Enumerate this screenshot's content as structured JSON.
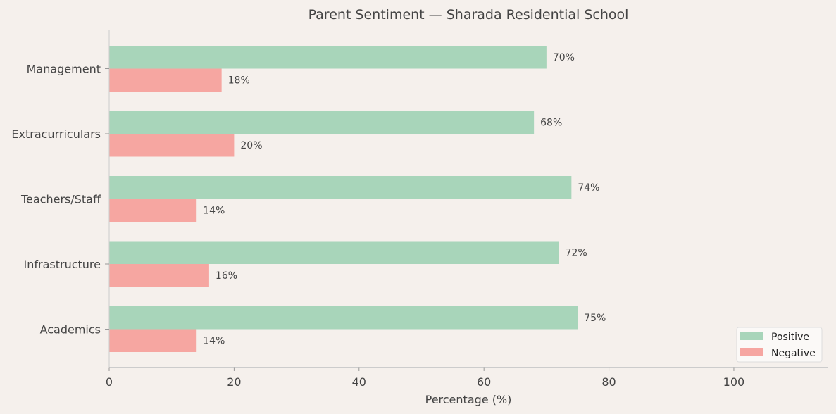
{
  "chart_data": {
    "type": "bar",
    "orientation": "horizontal",
    "title": "Parent Sentiment — Sharada Residential School",
    "xlabel": "Percentage (%)",
    "ylabel": "",
    "xlim": [
      0,
      115
    ],
    "xticks": [
      0,
      20,
      40,
      60,
      80,
      100
    ],
    "grid": false,
    "legend_placement": "bottom-right",
    "categories": [
      "Management",
      "Extracurriculars",
      "Teachers/Staff",
      "Infrastructure",
      "Academics"
    ],
    "series": [
      {
        "name": "Positive",
        "color": "#a8d5ba",
        "values": [
          70,
          68,
          74,
          72,
          75
        ]
      },
      {
        "name": "Negative",
        "color": "#f6a6a1",
        "values": [
          18,
          20,
          14,
          16,
          14
        ]
      }
    ],
    "value_label_suffix": "%"
  }
}
